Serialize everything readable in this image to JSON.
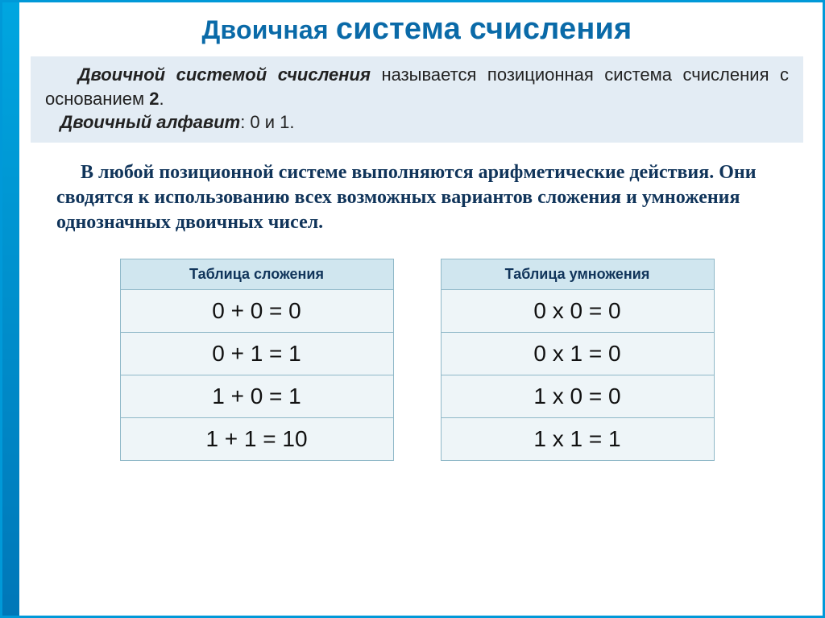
{
  "colors": {
    "frame": "#0099d8",
    "stripe_top": "#00a6e0",
    "stripe_bottom": "#0077b8",
    "title": "#0a6aa8",
    "defbox_bg": "#e3ecf4",
    "body_text": "#10345a",
    "table_header_bg": "#d0e6ef",
    "table_cell_bg": "#eef5f8",
    "table_border": "#8fb8c8"
  },
  "title": {
    "part1": "Двоичная ",
    "part2": "система счисления"
  },
  "definition": {
    "strong1": "Двоичной системой счисления",
    "text1": " называется позиционная система счисления с основанием ",
    "base": "2",
    "period": ".",
    "strong2": "Двоичный алфавит",
    "text2": ": 0 и 1."
  },
  "body": "В любой позиционной  системе выполняются арифметические действия. Они сводятся к использованию всех возможных вариантов сложения и умножения однозначных двоичных чисел.",
  "tables": {
    "addition": {
      "title": "Таблица сложения",
      "rows": [
        "0 + 0 = 0",
        "0 + 1 = 1",
        "1 + 0 = 1",
        "1 + 1 = 10"
      ]
    },
    "multiplication": {
      "title": "Таблица  умножения",
      "rows": [
        "0 х 0 = 0",
        "0 х 1 = 0",
        "1 х 0 = 0",
        "1 х 1 = 1"
      ]
    }
  }
}
